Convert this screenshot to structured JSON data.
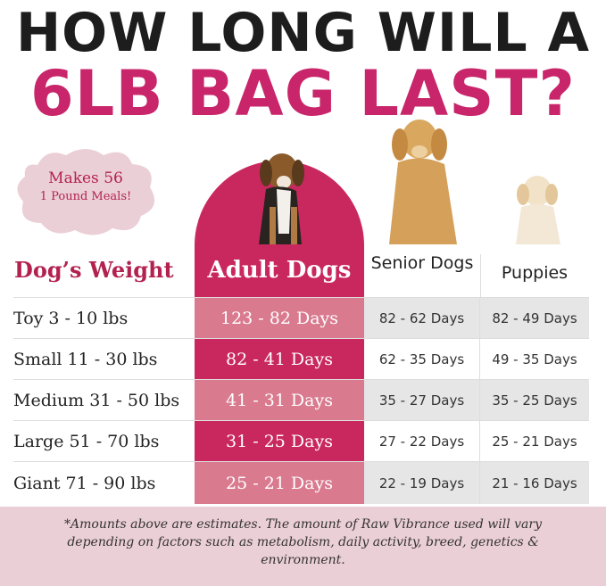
{
  "title": {
    "line1": "HOW LONG WILL A",
    "line2": "6LB BAG LAST?"
  },
  "badge": {
    "line1": "Makes 56",
    "line2": "1 Pound Meals!"
  },
  "headers": {
    "weight": "Dog’s Weight",
    "adult": "Adult Dogs",
    "senior": "Senior Dogs",
    "puppies": "Puppies"
  },
  "rows": [
    {
      "weight": "Toy 3 - 10 lbs",
      "adult": "123 - 82 Days",
      "senior": "82 - 62 Days",
      "puppies": "82 - 49 Days"
    },
    {
      "weight": "Small 11 - 30 lbs",
      "adult": "82 - 41 Days",
      "senior": "62 - 35 Days",
      "puppies": "49 - 35 Days"
    },
    {
      "weight": "Medium 31 - 50 lbs",
      "adult": "41 - 31 Days",
      "senior": "35 - 27 Days",
      "puppies": "35 - 25 Days"
    },
    {
      "weight": "Large 51 - 70 lbs",
      "adult": "31 - 25 Days",
      "senior": "27 - 22 Days",
      "puppies": "25 - 21 Days"
    },
    {
      "weight": "Giant 71 - 90 lbs",
      "adult": "25 - 21 Days",
      "senior": "22 - 19 Days",
      "puppies": "21 - 16 Days"
    }
  ],
  "footnote": "*Amounts above are estimates. The amount of Raw Vibrance used will vary depending on factors such as metabolism, daily activity, breed, genetics & environment.",
  "colors": {
    "brand_pink": "#c8256a",
    "light_pink": "#d97a8f",
    "badge_bg": "#ebcfd6",
    "gray": "#e6e6e6"
  }
}
